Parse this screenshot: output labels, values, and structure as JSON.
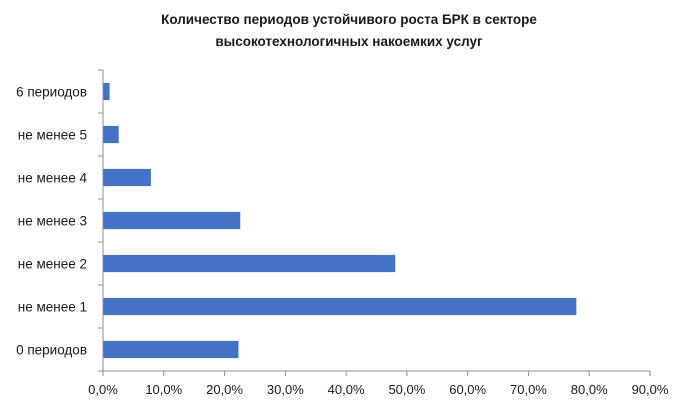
{
  "chart_data": {
    "type": "bar",
    "orientation": "horizontal",
    "title": "Количество  периодов устойчивого  роста БРК в секторе высокотехнологичных  накоемких  услуг",
    "title_lines": [
      "Количество  периодов устойчивого  роста БРК в секторе",
      "высокотехнологичных  накоемких  услуг"
    ],
    "categories": [
      "6 периодов",
      "не менее  5",
      "не менее  4",
      "не менее  3",
      "не менее  2",
      "не менее  1",
      "0 периодов"
    ],
    "values": [
      1.0,
      2.5,
      7.8,
      22.5,
      48.0,
      77.8,
      22.2
    ],
    "value_unit": "%",
    "xlim": [
      0,
      90
    ],
    "x_ticks": [
      "0,0%",
      "10,0%",
      "20,0%",
      "30,0%",
      "40,0%",
      "50,0%",
      "60,0%",
      "70,0%",
      "80,0%",
      "90,0%"
    ],
    "x_tick_values": [
      0,
      10,
      20,
      30,
      40,
      50,
      60,
      70,
      80,
      90
    ],
    "xlabel": "",
    "ylabel": "",
    "grid": false,
    "legend": "none",
    "bar_color": "#4472C4"
  }
}
